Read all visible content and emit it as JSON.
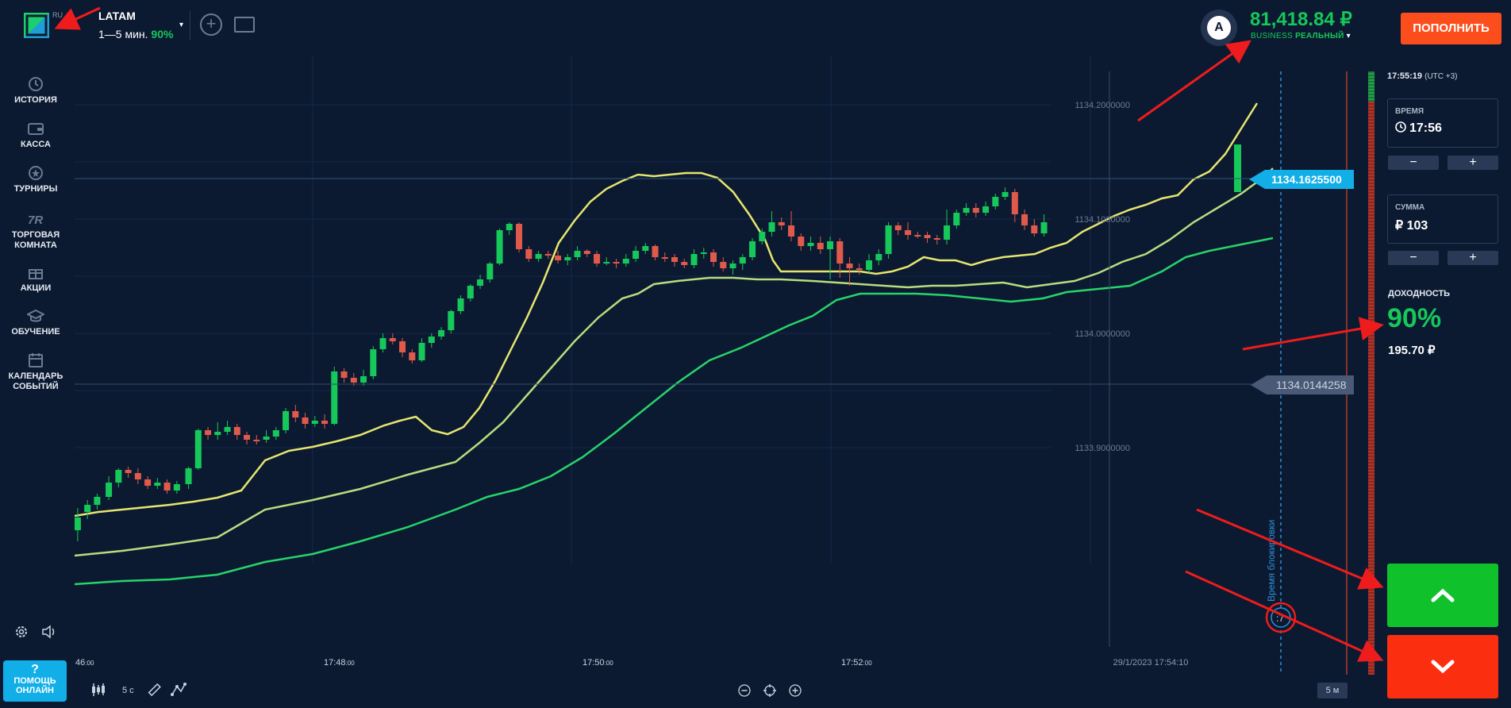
{
  "header": {
    "logo_lang": "RU",
    "asset_name": "LATAM",
    "asset_time": "1—5 мин.",
    "asset_payout": "90%",
    "caret": "▾",
    "balance": "81,418.84 ₽",
    "account_prefix": "BUSINESS",
    "account_type": "РЕАЛЬНЫЙ",
    "account_caret": "▾",
    "avatar_letter": "A",
    "deposit_label": "ПОПОЛНИТЬ",
    "plus_glyph": "+"
  },
  "sidebar": {
    "items": [
      {
        "label": "ИСТОРИЯ",
        "icon": "history-icon"
      },
      {
        "label": "КАССА",
        "icon": "wallet-icon"
      },
      {
        "label": "ТУРНИРЫ",
        "icon": "tournament-icon"
      },
      {
        "label": "ТОРГОВАЯ КОМНАТА",
        "icon": "trading-room-icon"
      },
      {
        "label": "АКЦИИ",
        "icon": "gift-icon"
      },
      {
        "label": "ОБУЧЕНИЕ",
        "icon": "education-icon"
      },
      {
        "label": "КАЛЕНДАРЬ СОБЫТИЙ",
        "icon": "calendar-icon"
      }
    ],
    "help_q": "?",
    "help_label": "ПОМОЩЬ ОНЛАЙН"
  },
  "chart": {
    "price_ticks": [
      "1134.2000000",
      "1134.1000000",
      "1134.0000000",
      "1133.9000000"
    ],
    "current_price": "1134.1625500",
    "open_price": "1134.0144258",
    "time_ticks": [
      {
        "main": ":46",
        "sec": ":00"
      },
      {
        "main": "17:48",
        "sec": ":00"
      },
      {
        "main": "17:50",
        "sec": ":00"
      },
      {
        "main": "17:52",
        "sec": ":00"
      }
    ],
    "crosshair_time": "29/1/2023 17:54:10",
    "lock_label": "Время блокировки",
    "countdown": ":7",
    "colors": {
      "up": "#16c75a",
      "down": "#e05a4c",
      "ma_fast": "#e6e66e",
      "ma_mid": "#b8dc7e",
      "ma_slow": "#27d46a",
      "accent": "#11aee8"
    }
  },
  "toolbar": {
    "candle_interval": "5 с",
    "timeframe": "5 м"
  },
  "panel": {
    "clock": "17:55:19",
    "tz": "(UTC +3)",
    "time_label": "ВРЕМЯ",
    "time_value": "17:56",
    "amount_label": "СУММА",
    "amount_value": "₽ 103",
    "minus": "−",
    "plus": "+",
    "profit_label": "ДОХОДНОСТЬ",
    "profit_pct": "90%",
    "profit_amount": "195.70 ₽"
  }
}
